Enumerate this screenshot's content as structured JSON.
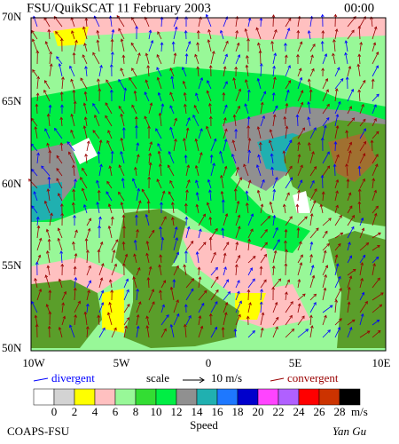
{
  "header": {
    "title": "FSU/QuikSCAT 11 February 2003",
    "time": "00:00"
  },
  "lat_labels": [
    "70N",
    "65N",
    "60N",
    "55N",
    "50N"
  ],
  "lon_labels": [
    "10W",
    "5W",
    "0",
    "5E",
    "10E"
  ],
  "legend": {
    "divergent": "divergent",
    "scale": "scale",
    "scale_value": "10 m/s",
    "convergent": "convergent"
  },
  "colorbar": {
    "colors": [
      "#ffffff",
      "#d3d3d3",
      "#ffff00",
      "#ffc0c0",
      "#98f898",
      "#33dd33",
      "#00ee44",
      "#909090",
      "#20b0b0",
      "#1e78ff",
      "#0000cc",
      "#ff44ff",
      "#b060ff",
      "#ff0000",
      "#cc3300",
      "#000000"
    ],
    "labels": [
      0,
      2,
      4,
      6,
      8,
      10,
      12,
      14,
      16,
      18,
      20,
      22,
      24,
      26,
      28
    ],
    "unit": "m/s",
    "title": "Speed"
  },
  "footer": {
    "left": "COAPS-FSU",
    "right": "Yan Gu"
  }
}
